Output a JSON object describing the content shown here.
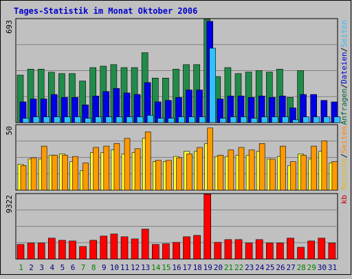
{
  "chart_data": [
    {
      "type": "bar",
      "title": "Tages-Statistik im Monat Oktober 2006",
      "ymax_label": "693",
      "right_labels": [
        {
          "text": "Anfragen",
          "color": "#006633"
        },
        {
          "text": "/",
          "color": "#000000"
        },
        {
          "text": "Dateien",
          "color": "#0000cc"
        },
        {
          "text": "/",
          "color": "#000000"
        },
        {
          "text": "Seiten",
          "color": "#33bbff"
        }
      ],
      "categories": [
        "1",
        "2",
        "3",
        "4",
        "5",
        "6",
        "7",
        "8",
        "9",
        "10",
        "11",
        "12",
        "13",
        "14",
        "15",
        "16",
        "17",
        "18",
        "19",
        "20",
        "21",
        "22",
        "23",
        "24",
        "25",
        "26",
        "27",
        "28",
        "29",
        "30",
        "31"
      ],
      "weekend_days": [
        1,
        7,
        8,
        14,
        15,
        21,
        22,
        28,
        29
      ],
      "series": [
        {
          "name": "Anfragen",
          "color": "#218c4a",
          "values": [
            319,
            359,
            359,
            338,
            329,
            329,
            279,
            369,
            379,
            389,
            369,
            369,
            469,
            299,
            299,
            359,
            389,
            389,
            693,
            309,
            369,
            329,
            339,
            349,
            339,
            359,
            169,
            349,
            0,
            0,
            0
          ]
        },
        {
          "name": "Dateien",
          "color": "#0000e6",
          "values": [
            139,
            159,
            159,
            189,
            169,
            169,
            119,
            179,
            209,
            229,
            199,
            189,
            269,
            139,
            149,
            169,
            219,
            219,
            679,
            159,
            179,
            179,
            169,
            179,
            169,
            179,
            99,
            189,
            189,
            149,
            139
          ]
        },
        {
          "name": "Seiten",
          "color": "#33c0ff",
          "values": [
            29,
            39,
            39,
            39,
            39,
            39,
            29,
            39,
            39,
            39,
            39,
            39,
            49,
            29,
            29,
            39,
            39,
            39,
            499,
            29,
            39,
            39,
            29,
            39,
            39,
            39,
            19,
            39,
            39,
            39,
            39
          ]
        }
      ],
      "ylim": [
        0,
        693
      ]
    },
    {
      "type": "bar",
      "ymax_label": "50",
      "right_labels": [
        {
          "text": "Besuche",
          "color": "#d8c020"
        },
        {
          "text": "/",
          "color": "#000000"
        },
        {
          "text": "Seiten",
          "color": "#ff8800"
        }
      ],
      "series": [
        {
          "name": "Besuche",
          "color": "#ffff33",
          "values": [
            20,
            24,
            24,
            27,
            28,
            22,
            15,
            29,
            29,
            31,
            28,
            29,
            40,
            22,
            22,
            26,
            30,
            30,
            36,
            26,
            26,
            27,
            27,
            30,
            24,
            26,
            19,
            28,
            24,
            30,
            21
          ]
        },
        {
          "name": "Seiten",
          "color": "#ff9900",
          "values": [
            19,
            25,
            34,
            27,
            27,
            26,
            21,
            33,
            34,
            36,
            40,
            32,
            45,
            23,
            23,
            25,
            28,
            33,
            48,
            27,
            31,
            33,
            31,
            36,
            24,
            34,
            22,
            27,
            34,
            38,
            22
          ]
        }
      ],
      "ylim": [
        0,
        50
      ]
    },
    {
      "type": "bar",
      "ymax_label": "9322",
      "right_labels": [
        {
          "text": "kb",
          "color": "#cc0000"
        }
      ],
      "series": [
        {
          "name": "kb",
          "color": "#ff0000",
          "values": [
            2100,
            2300,
            2300,
            3000,
            2700,
            2600,
            1800,
            2700,
            3300,
            3600,
            3200,
            2900,
            4300,
            2100,
            2200,
            2400,
            3200,
            3400,
            9322,
            2400,
            2800,
            2800,
            2300,
            2800,
            2300,
            2300,
            3000,
            1700,
            2600,
            3000,
            2300
          ]
        }
      ],
      "ylim": [
        0,
        9322
      ]
    }
  ]
}
